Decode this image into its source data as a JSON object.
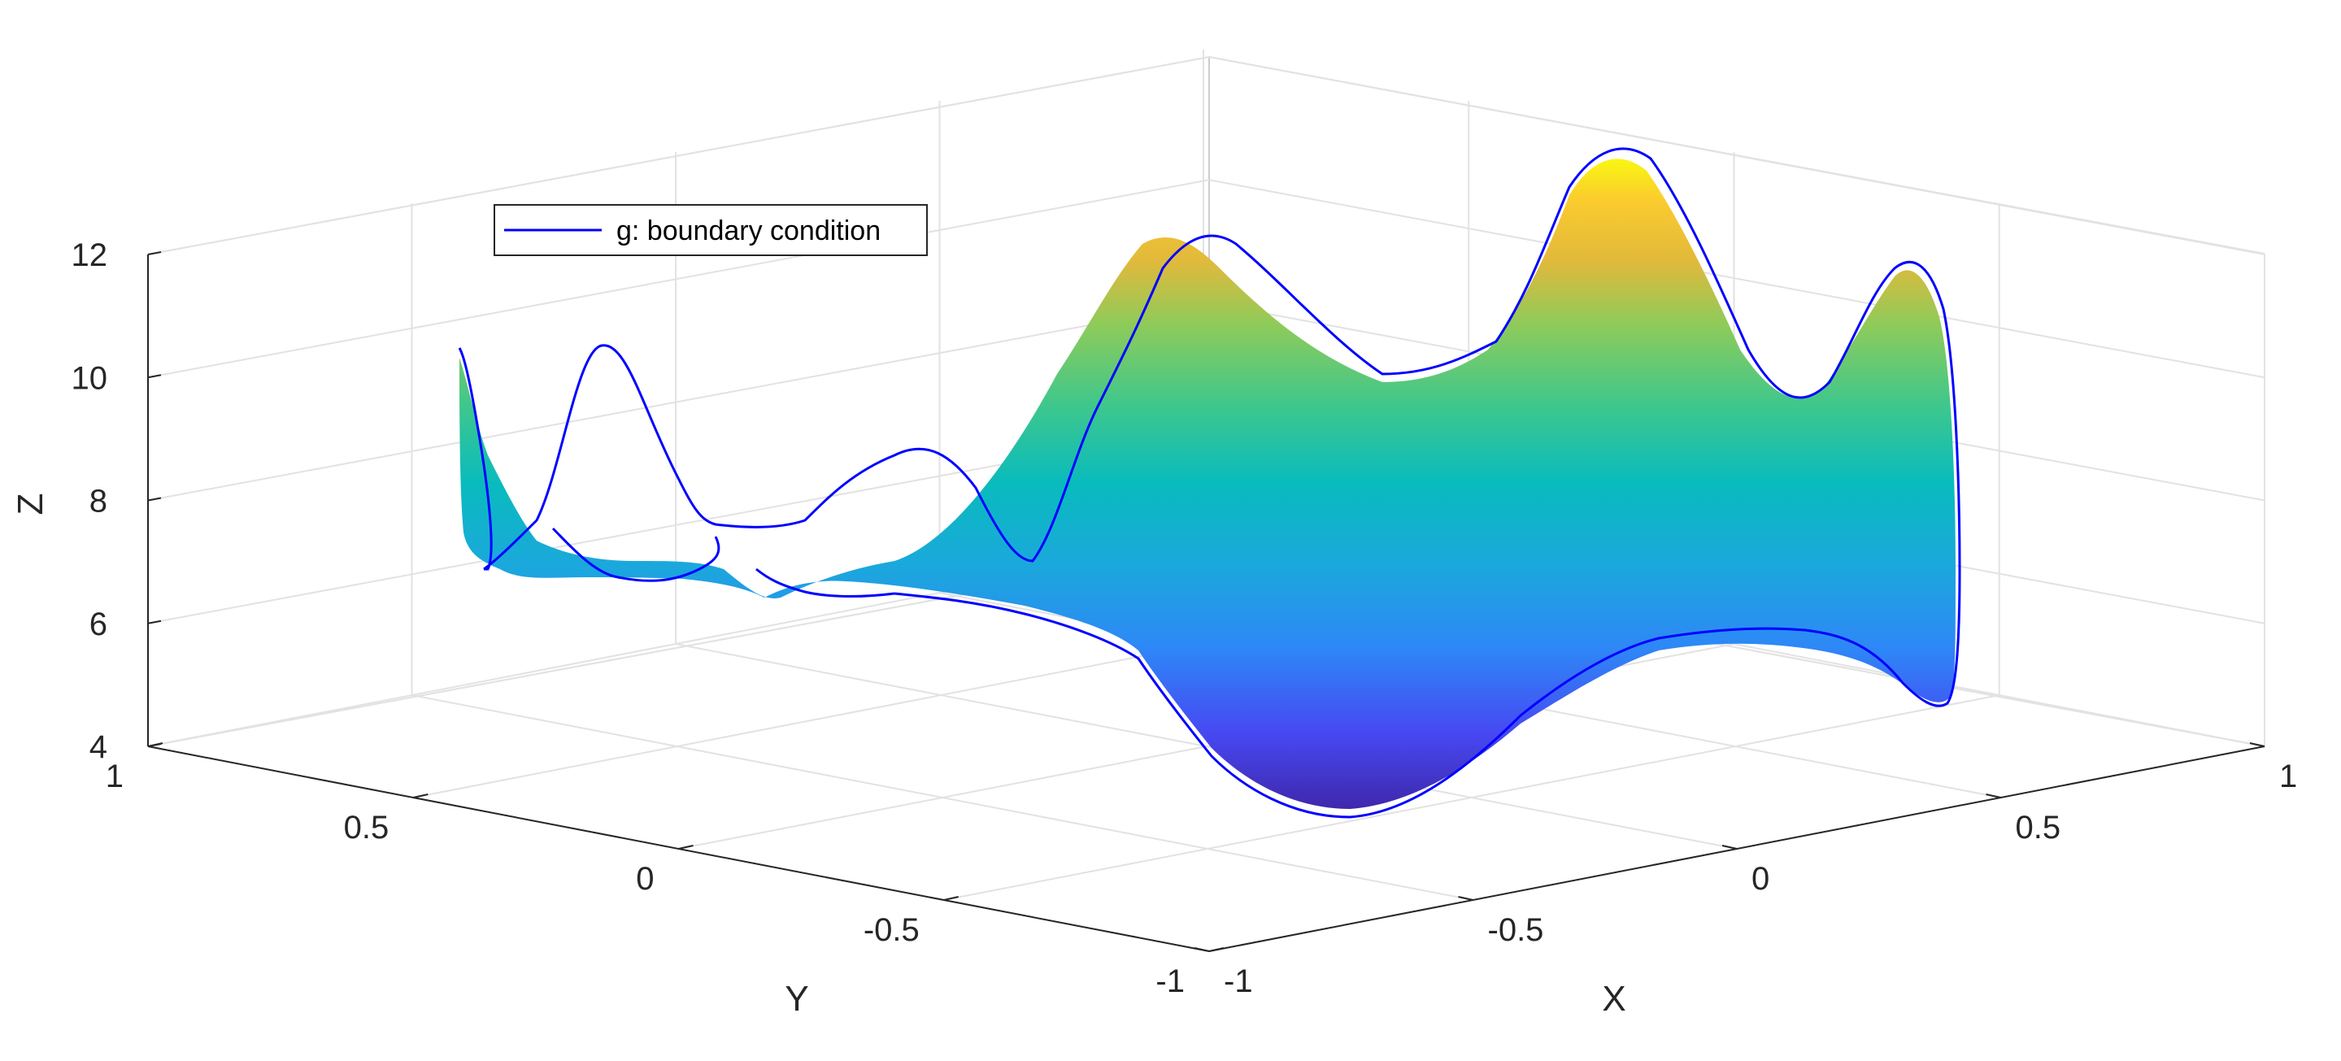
{
  "chart_data": {
    "type": "surface",
    "title": "",
    "xlabel": "X",
    "ylabel": "Y",
    "zlabel": "Z",
    "xlim": [
      -1,
      1
    ],
    "ylim": [
      -1,
      1
    ],
    "zlim": [
      4,
      12
    ],
    "x_ticks": [
      "-1",
      "-0.5",
      "0",
      "0.5",
      "1"
    ],
    "y_ticks": [
      "-1",
      "-0.5",
      "0",
      "0.5",
      "1"
    ],
    "z_ticks": [
      "4",
      "6",
      "8",
      "10",
      "12"
    ],
    "grid": true,
    "colormap": "parula",
    "legend": {
      "placement": "top-left",
      "entries": [
        {
          "label": "g: boundary condition",
          "color": "#0000ff"
        }
      ]
    },
    "series": [
      {
        "name": "g: boundary condition",
        "kind": "boundary-curve",
        "color": "#0000ff"
      }
    ]
  }
}
